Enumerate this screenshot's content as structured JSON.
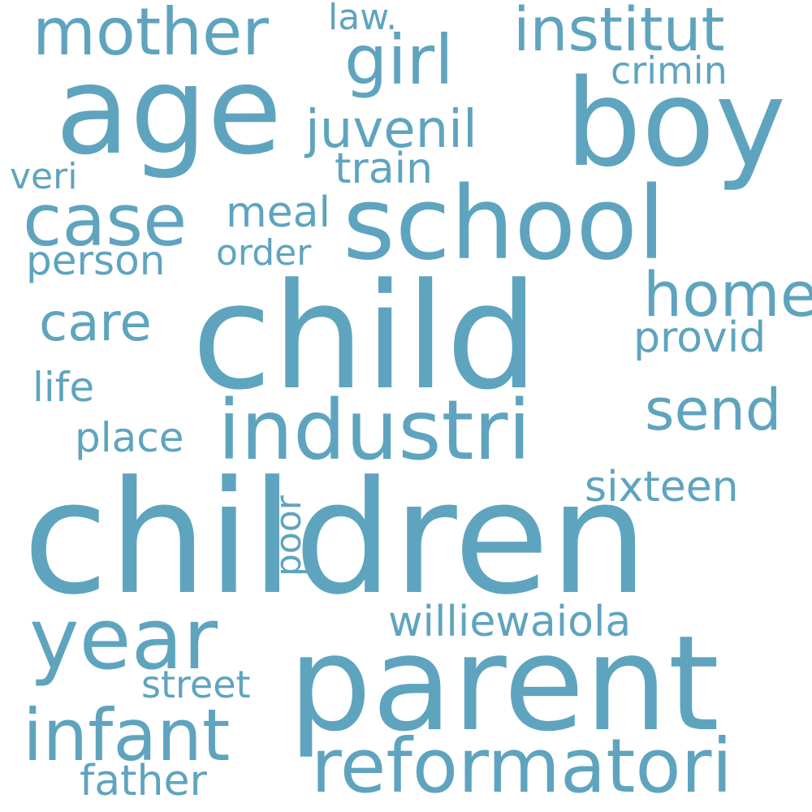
{
  "colors": {
    "word": "#5fa4bf",
    "background": "#ffffff"
  },
  "words": {
    "children": "children",
    "child": "child",
    "parent": "parent",
    "age": "age",
    "boy": "boy",
    "school": "school",
    "industri": "industri",
    "year": "year",
    "reformatori": "reformatori",
    "infant": "infant",
    "case": "case",
    "mother": "mother",
    "girl": "girl",
    "institut": "institut",
    "home": "home",
    "juvenil": "juvenil",
    "send": "send",
    "care": "care",
    "provid": "provid",
    "train": "train",
    "meal": "meal",
    "sixteen": "sixteen",
    "williewaiola": "williewaiola",
    "person": "person",
    "father": "father",
    "street": "street",
    "place": "place",
    "life": "life",
    "order": "order",
    "crimin": "crimin",
    "veri": "veri",
    "law": "law.",
    "poor": "poor"
  }
}
